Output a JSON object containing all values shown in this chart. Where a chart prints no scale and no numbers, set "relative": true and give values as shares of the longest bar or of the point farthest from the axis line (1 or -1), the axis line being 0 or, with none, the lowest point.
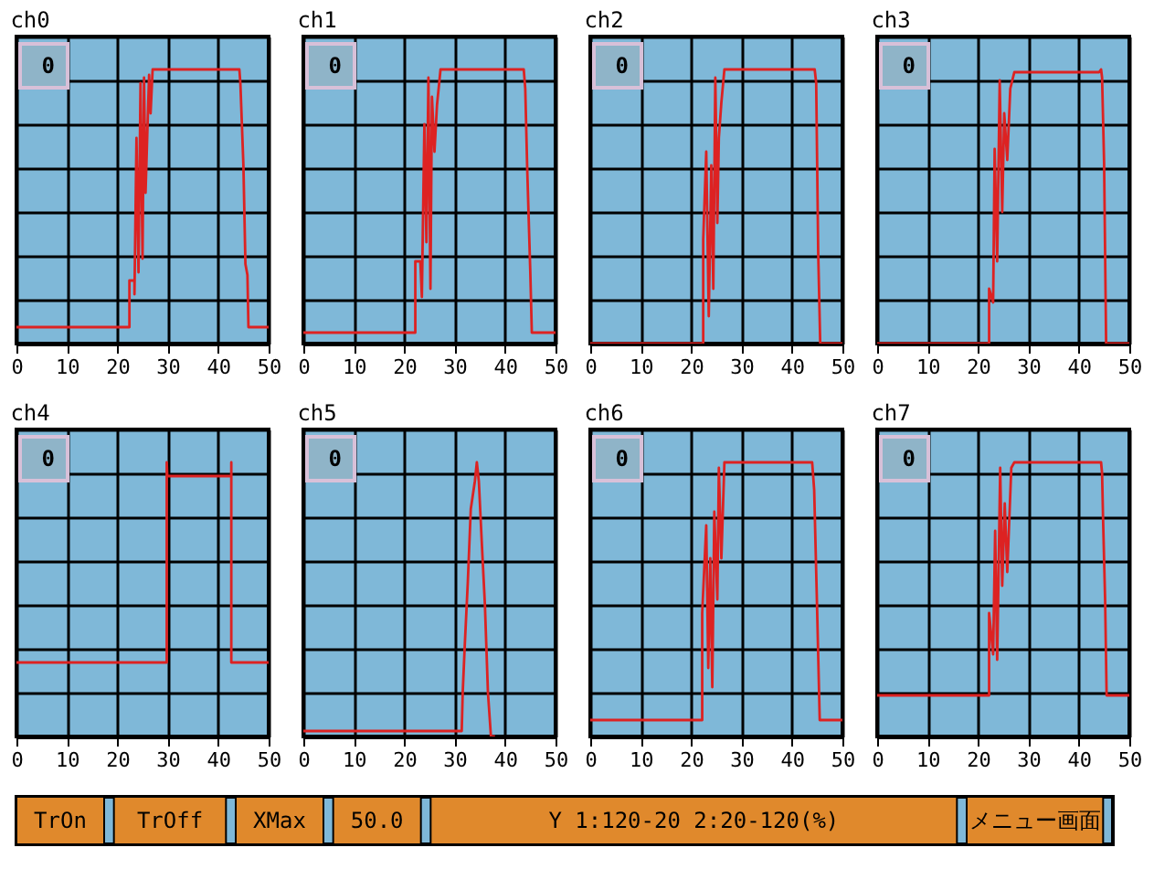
{
  "chart_data": [
    {
      "type": "line",
      "title": "ch0",
      "annotations": [
        "0"
      ],
      "relative": true,
      "xlim": [
        0,
        50
      ],
      "xticks": [
        0,
        10,
        20,
        30,
        40,
        50
      ],
      "grid": true,
      "series": [
        {
          "color": "#dd2222",
          "x": [
            0,
            22.4,
            22.4,
            23.4,
            23.4,
            23.8,
            24.2,
            24.6,
            25,
            25.3,
            25.6,
            26,
            26.3,
            26.6,
            27,
            44.2,
            44.4,
            45,
            45.4,
            45.8,
            46,
            50
          ],
          "values": [
            0.06,
            0.06,
            0.23,
            0.23,
            0.18,
            0.75,
            0.26,
            0.95,
            0.31,
            0.97,
            0.55,
            0.8,
            0.98,
            0.84,
            1,
            1,
            0.95,
            0.65,
            0.29,
            0.25,
            0.06,
            0.06
          ]
        }
      ]
    },
    {
      "type": "line",
      "title": "ch1",
      "annotations": [
        "0"
      ],
      "relative": true,
      "xlim": [
        0,
        50
      ],
      "xticks": [
        0,
        10,
        20,
        30,
        40,
        50
      ],
      "grid": true,
      "series": [
        {
          "color": "#dd2222",
          "x": [
            0,
            22.2,
            22.2,
            23.2,
            23.5,
            24,
            24.4,
            24.8,
            25.2,
            25.5,
            26,
            26.5,
            27.2,
            43.7,
            44,
            44.4,
            45,
            45.3,
            50
          ],
          "values": [
            0.04,
            0.04,
            0.3,
            0.3,
            0.17,
            0.8,
            0.37,
            0.97,
            0.2,
            0.9,
            0.7,
            0.87,
            1,
            1,
            0.93,
            0.63,
            0.26,
            0.04,
            0.04
          ]
        }
      ]
    },
    {
      "type": "line",
      "title": "ch2",
      "annotations": [
        "0"
      ],
      "relative": true,
      "xlim": [
        0,
        50
      ],
      "xticks": [
        0,
        10,
        20,
        30,
        40,
        50
      ],
      "grid": true,
      "series": [
        {
          "color": "#dd2222",
          "x": [
            0,
            22.4,
            22.4,
            23,
            23.5,
            24,
            24.4,
            24.8,
            25.2,
            25.5,
            26,
            26.6,
            44.5,
            44.8,
            45.2,
            45.6,
            50
          ],
          "values": [
            0,
            0,
            0.38,
            0.7,
            0.1,
            0.65,
            0.2,
            0.97,
            0.44,
            0.75,
            0.88,
            1,
            1,
            0.95,
            0.33,
            0,
            0
          ]
        }
      ]
    },
    {
      "type": "line",
      "title": "ch3",
      "annotations": [
        "0"
      ],
      "relative": true,
      "xlim": [
        0,
        50
      ],
      "xticks": [
        0,
        10,
        20,
        30,
        40,
        50
      ],
      "grid": true,
      "series": [
        {
          "color": "#dd2222",
          "x": [
            0,
            22.2,
            22.2,
            23,
            23.3,
            23.8,
            24.3,
            24.8,
            25.2,
            25.8,
            26.4,
            27.2,
            44,
            44.4,
            44.6,
            45,
            45.4,
            50
          ],
          "values": [
            0,
            0,
            0.2,
            0.15,
            0.71,
            0.3,
            0.96,
            0.48,
            0.84,
            0.67,
            0.93,
            0.99,
            0.99,
            1,
            0.97,
            0.66,
            0,
            0
          ]
        }
      ]
    },
    {
      "type": "line",
      "title": "ch4",
      "annotations": [
        "0"
      ],
      "relative": true,
      "xlim": [
        0,
        50
      ],
      "xticks": [
        0,
        10,
        20,
        30,
        40,
        50
      ],
      "grid": true,
      "series": [
        {
          "color": "#dd2222",
          "x": [
            0,
            29.8,
            29.8,
            29.9,
            42.6,
            42.6,
            42.6,
            50
          ],
          "values": [
            0.27,
            0.27,
            1,
            0.95,
            0.95,
            1,
            0.27,
            0.27
          ]
        }
      ]
    },
    {
      "type": "line",
      "title": "ch5",
      "annotations": [
        "0"
      ],
      "relative": true,
      "xlim": [
        0,
        50
      ],
      "xticks": [
        0,
        10,
        20,
        30,
        40,
        50
      ],
      "grid": true,
      "series": [
        {
          "color": "#dd2222",
          "x": [
            0,
            31.4,
            31.6,
            32,
            32.6,
            33.2,
            34,
            34.4,
            34.8,
            35.4,
            36,
            36.6,
            37.2,
            38
          ],
          "values": [
            0.02,
            0.02,
            0.16,
            0.33,
            0.56,
            0.83,
            0.93,
            1,
            0.93,
            0.7,
            0.48,
            0.16,
            0,
            0
          ]
        }
      ]
    },
    {
      "type": "line",
      "title": "ch6",
      "annotations": [
        "0"
      ],
      "relative": true,
      "xlim": [
        0,
        50
      ],
      "xticks": [
        0,
        10,
        20,
        30,
        40,
        50
      ],
      "grid": true,
      "series": [
        {
          "color": "#dd2222",
          "x": [
            0,
            22.2,
            22.2,
            23,
            23.4,
            23.8,
            24.2,
            24.6,
            25.2,
            25.5,
            26,
            26.6,
            44,
            44.4,
            45,
            45.5,
            50
          ],
          "values": [
            0.06,
            0.06,
            0.45,
            0.77,
            0.25,
            0.65,
            0.18,
            0.82,
            0.5,
            0.98,
            0.65,
            1,
            1,
            0.9,
            0.45,
            0.06,
            0.06
          ]
        }
      ]
    },
    {
      "type": "line",
      "title": "ch7",
      "annotations": [
        "0"
      ],
      "relative": true,
      "xlim": [
        0,
        50
      ],
      "xticks": [
        0,
        10,
        20,
        30,
        40,
        50
      ],
      "grid": true,
      "series": [
        {
          "color": "#dd2222",
          "x": [
            0,
            22.2,
            22.2,
            23,
            23.4,
            23.8,
            24.4,
            24.8,
            25.3,
            25.8,
            26.6,
            27.2,
            44.4,
            44.6,
            44.8,
            45.2,
            45.5,
            50
          ],
          "values": [
            0.15,
            0.15,
            0.45,
            0.3,
            0.75,
            0.28,
            0.98,
            0.55,
            0.85,
            0.6,
            0.98,
            1,
            1,
            0.96,
            0.79,
            0.5,
            0.15,
            0.15
          ]
        }
      ]
    },
    {
      "type": "other",
      "annotations": [
        "TrOn",
        "TrOff",
        "XMax",
        "50.0",
        "Y 1:120-20 2:20-120(%)",
        "メニュー画面"
      ]
    }
  ]
}
